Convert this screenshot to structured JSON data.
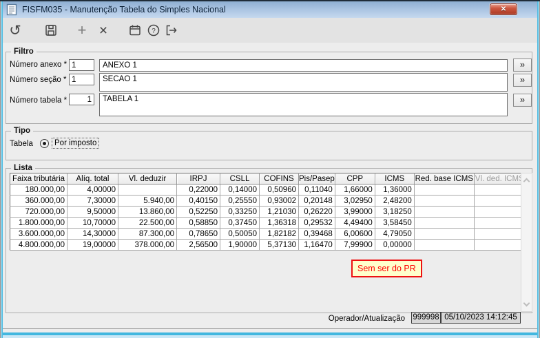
{
  "window": {
    "title": "FISFM035 - Manutenção Tabela do Simples Nacional"
  },
  "titlebar": {
    "close_glyph": "✕"
  },
  "toolbar": {
    "buttons": [
      {
        "name": "undo",
        "glyph": "↺"
      },
      {
        "name": "save"
      },
      {
        "name": "add",
        "glyph": "+"
      },
      {
        "name": "delete",
        "glyph": "×"
      },
      {
        "name": "calendar"
      },
      {
        "name": "help",
        "glyph": "?"
      },
      {
        "name": "exit"
      }
    ]
  },
  "filter": {
    "legend": "Filtro",
    "fields": [
      {
        "label": "Número anexo *",
        "value": "1",
        "text": "ANEXO 1",
        "more_label": "»"
      },
      {
        "label": "Número seção *",
        "value": "1",
        "text": "SECAO 1",
        "more_label": "»"
      },
      {
        "label": "Número tabela *",
        "value": "1",
        "text": "TABELA 1",
        "more_label": "»"
      }
    ]
  },
  "tipo": {
    "legend": "Tipo",
    "group_label": "Tabela",
    "radio": {
      "label": "Por imposto",
      "selected": true
    }
  },
  "lista": {
    "legend": "Lista",
    "table": {
      "headers": [
        {
          "label": "Faixa tributária"
        },
        {
          "label": "Alíq. total"
        },
        {
          "label": "Vl. deduzir"
        },
        {
          "label": "IRPJ"
        },
        {
          "label": "CSLL"
        },
        {
          "label": "COFINS"
        },
        {
          "label": "Pis/Pasep"
        },
        {
          "label": "CPP"
        },
        {
          "label": "ICMS"
        },
        {
          "label": "Red. base ICMS"
        },
        {
          "label": "Vl. ded. ICMS",
          "disabled": true
        }
      ],
      "rows": [
        [
          "180.000,00",
          "4,00000",
          "",
          "0,22000",
          "0,14000",
          "0,50960",
          "0,11040",
          "1,66000",
          "1,36000",
          "",
          ""
        ],
        [
          "360.000,00",
          "7,30000",
          "5.940,00",
          "0,40150",
          "0,25550",
          "0,93002",
          "0,20148",
          "3,02950",
          "2,48200",
          "",
          ""
        ],
        [
          "720.000,00",
          "9,50000",
          "13.860,00",
          "0,52250",
          "0,33250",
          "1,21030",
          "0,26220",
          "3,99000",
          "3,18250",
          "",
          ""
        ],
        [
          "1.800.000,00",
          "10,70000",
          "22.500,00",
          "0,58850",
          "0,37450",
          "1,36318",
          "0,29532",
          "4,49400",
          "3,58450",
          "",
          ""
        ],
        [
          "3.600.000,00",
          "14,30000",
          "87.300,00",
          "0,78650",
          "0,50050",
          "1,82182",
          "0,39468",
          "6,00600",
          "4,79050",
          "",
          ""
        ],
        [
          "4.800.000,00",
          "19,00000",
          "378.000,00",
          "2,56500",
          "1,90000",
          "5,37130",
          "1,16470",
          "7,99900",
          "0,00000",
          "",
          ""
        ]
      ]
    }
  },
  "annotation": {
    "text": "Sem ser do PR",
    "text_color": "#ff0000",
    "background": "#ffffcc",
    "border_color": "#ee1111"
  },
  "status": {
    "label": "Operador/Atualização",
    "operator": "999998",
    "updated_at": "05/10/2023 14:12:45"
  },
  "colors": {
    "titlebar_top": "#8fafd2",
    "titlebar_bottom": "#c6d9ee",
    "close_button": "#aa3a24",
    "accent_border": "#42b7df",
    "toolbar_bg": "#e3e3e3",
    "window_bg": "#ededed"
  }
}
